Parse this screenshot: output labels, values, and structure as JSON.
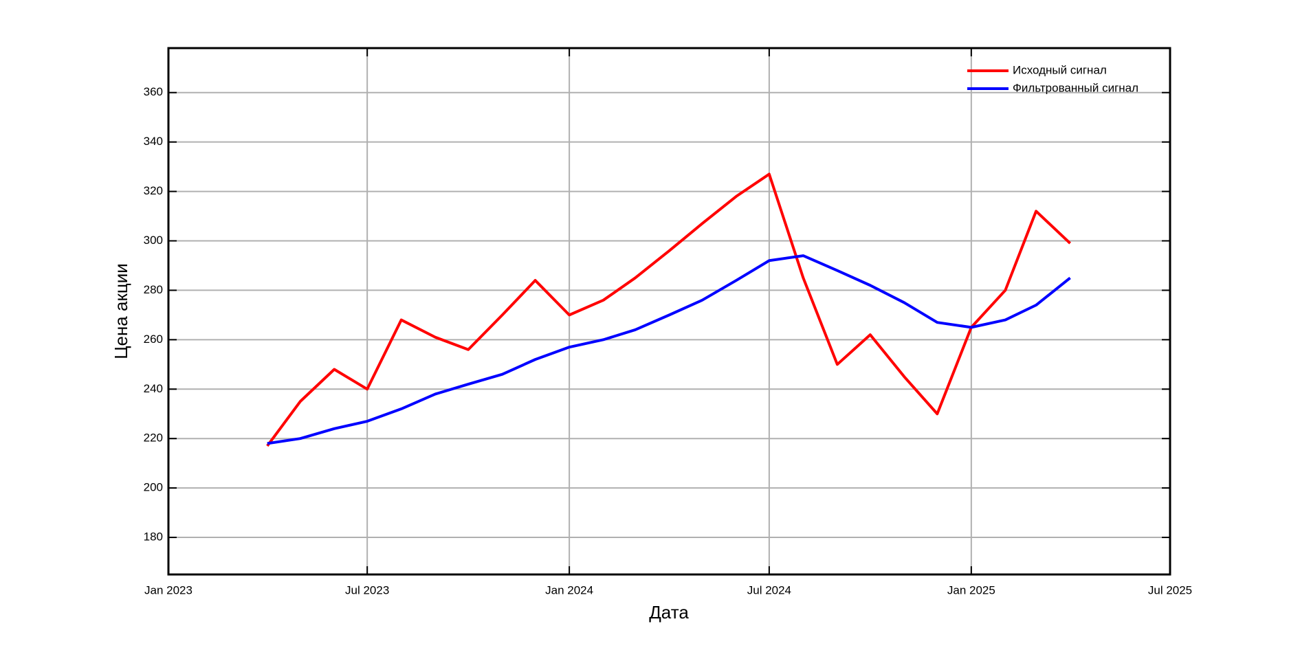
{
  "chart_data": {
    "type": "line",
    "xlabel": "Дата",
    "ylabel": "Цена акции",
    "x": [
      "2023-04",
      "2023-05",
      "2023-06",
      "2023-07",
      "2023-08",
      "2023-09",
      "2023-10",
      "2023-11",
      "2023-12",
      "2024-01",
      "2024-02",
      "2024-03",
      "2024-04",
      "2024-05",
      "2024-06",
      "2024-07",
      "2024-08",
      "2024-09",
      "2024-10",
      "2024-11",
      "2024-12",
      "2025-01",
      "2025-02",
      "2025-03",
      "2025-04"
    ],
    "series": [
      {
        "name": "Исходный сигнал",
        "color": "#ff0000",
        "values": [
          217,
          235,
          248,
          240,
          268,
          261,
          256,
          270,
          284,
          270,
          276,
          285,
          296,
          307,
          318,
          327,
          285,
          250,
          262,
          245,
          230,
          265,
          280,
          312,
          299
        ]
      },
      {
        "name": "Фильтрованный сигнал",
        "color": "#0000ff",
        "values": [
          218,
          220,
          224,
          227,
          232,
          238,
          242,
          246,
          252,
          257,
          260,
          264,
          270,
          276,
          284,
          292,
          294,
          288,
          282,
          275,
          267,
          265,
          268,
          274,
          285
        ]
      }
    ],
    "xlim": [
      "2023-01",
      "2025-07"
    ],
    "xticks": [
      {
        "value": "2023-01",
        "label": "Jan 2023"
      },
      {
        "value": "2023-07",
        "label": "Jul 2023"
      },
      {
        "value": "2024-01",
        "label": "Jan 2024"
      },
      {
        "value": "2024-07",
        "label": "Jul 2024"
      },
      {
        "value": "2025-01",
        "label": "Jan 2025"
      },
      {
        "value": "2025-07",
        "label": "Jul 2025"
      }
    ],
    "ylim": [
      165,
      378
    ],
    "yticks": [
      180,
      200,
      220,
      240,
      260,
      280,
      300,
      320,
      340,
      360
    ],
    "grid": true,
    "legend": "upper right"
  }
}
